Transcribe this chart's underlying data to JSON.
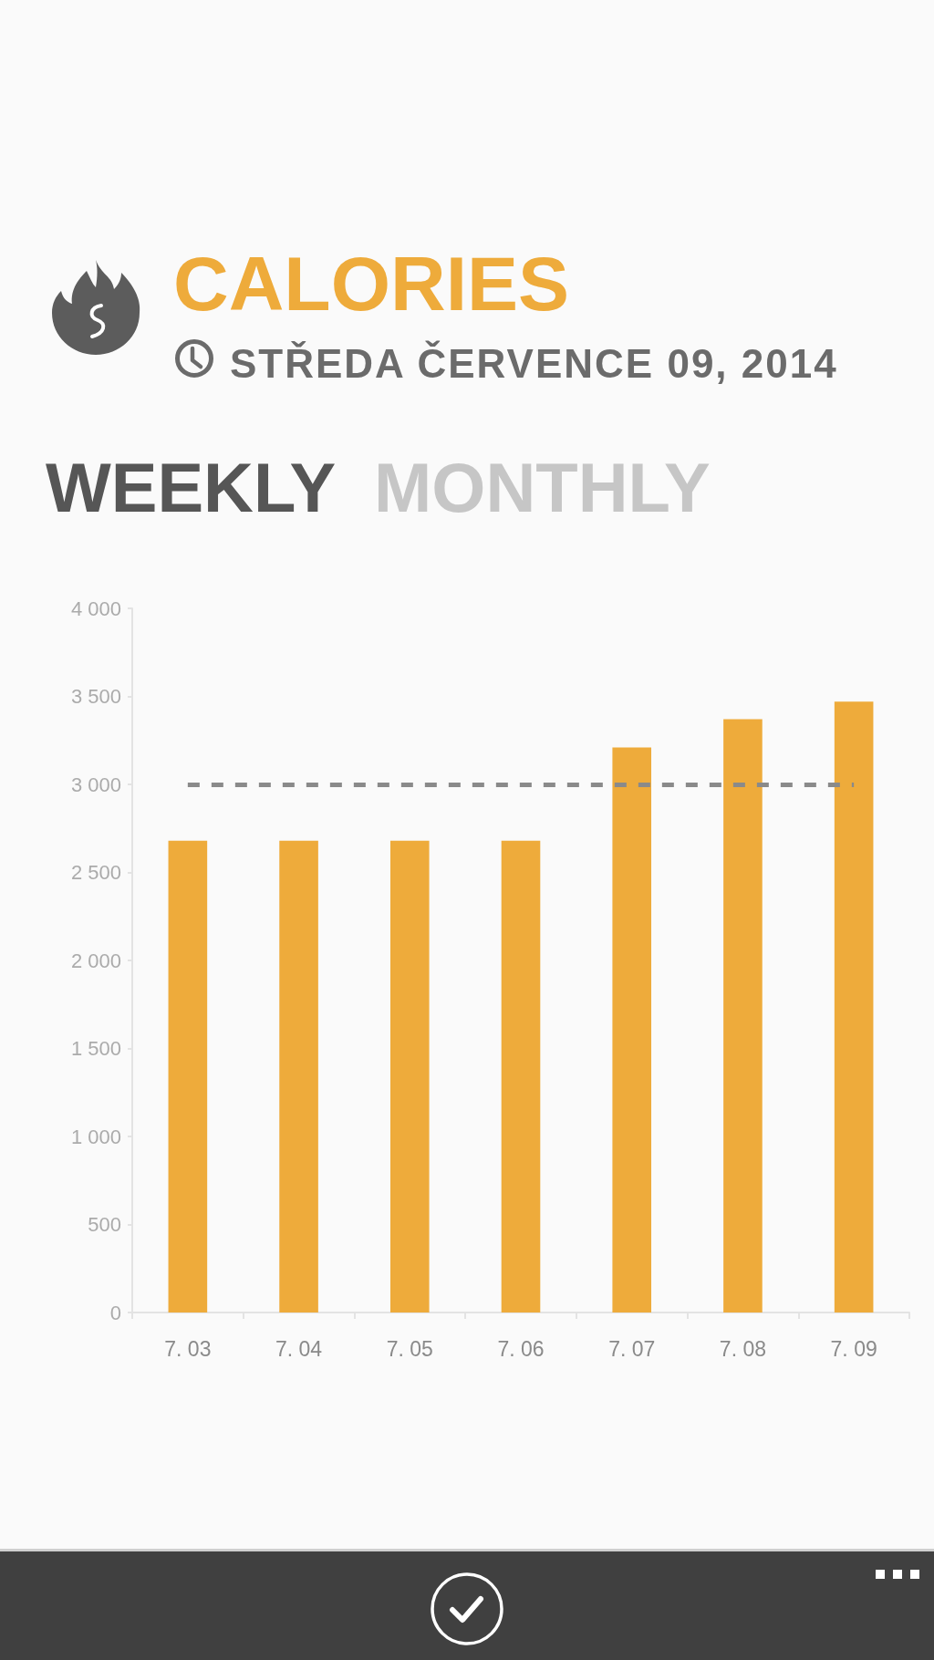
{
  "chart_data": {
    "type": "bar",
    "title": "CALORIES",
    "subtitle": "STŘEDA ČERVENCE 09, 2014",
    "annotations": [
      "WEEKLY",
      "MONTHLY"
    ],
    "categories": [
      "7. 03",
      "7. 04",
      "7. 05",
      "7. 06",
      "7. 07",
      "7. 08",
      "7. 09"
    ],
    "values": [
      2680,
      2680,
      2680,
      2680,
      3210,
      3370,
      3470
    ],
    "color": "#eeab3b",
    "ylim": [
      0,
      4000
    ],
    "yticks": [
      0,
      500,
      {
        "value": 1000,
        "label": "1 000"
      },
      {
        "value": 1500,
        "label": "1 500"
      },
      {
        "value": 2000,
        "label": "2 000"
      },
      {
        "value": 2500,
        "label": "2 500"
      },
      {
        "value": 3000,
        "label": "3 000"
      },
      {
        "value": 3500,
        "label": "3 500"
      },
      {
        "value": 4000,
        "label": "4 000"
      }
    ],
    "grid": false,
    "ref_lines": [
      {
        "axis": "y",
        "value": 3000,
        "color": "#8a8a8a",
        "line_style": "dashed"
      }
    ]
  }
}
